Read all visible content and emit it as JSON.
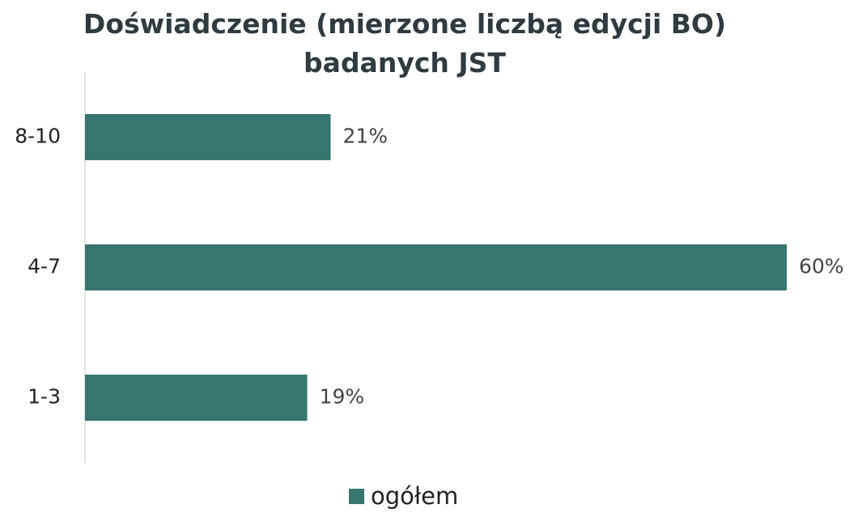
{
  "chart_data": {
    "type": "bar",
    "orientation": "horizontal",
    "title": "Doświadczenie (mierzone liczbą edycji BO) badanych JST",
    "categories": [
      "8-10",
      "4-7",
      "1-3"
    ],
    "series": [
      {
        "name": "ogółem",
        "color": "#367570",
        "values": [
          21,
          60,
          19
        ],
        "value_labels": [
          "21%",
          "60%",
          "19%"
        ]
      }
    ],
    "legend": "bottom"
  }
}
